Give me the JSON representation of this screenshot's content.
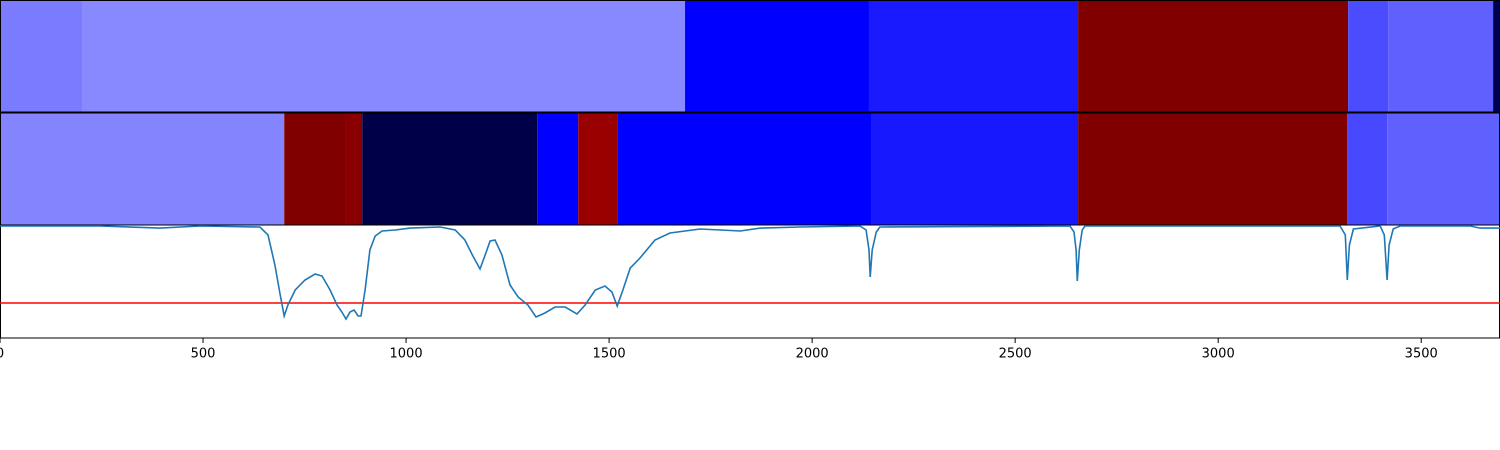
{
  "chart_data": {
    "type": "line",
    "xlim": [
      0,
      3694
    ],
    "xticks": [
      0,
      500,
      1000,
      1500,
      2000,
      2500,
      3000,
      3500
    ],
    "ylim": [
      0,
      1
    ],
    "tracks": [
      [
        {
          "start": 0,
          "end": 204,
          "color": "#7b7bff"
        },
        {
          "start": 204,
          "end": 1687,
          "color": "#8888ff"
        },
        {
          "start": 1687,
          "end": 2140,
          "color": "#0000ff"
        },
        {
          "start": 2140,
          "end": 2655,
          "color": "#1a1aff"
        },
        {
          "start": 2655,
          "end": 3320,
          "color": "#800000"
        },
        {
          "start": 3320,
          "end": 3419,
          "color": "#4c4cff"
        },
        {
          "start": 3419,
          "end": 3677,
          "color": "#6060ff"
        },
        {
          "start": 3677,
          "end": 3694,
          "color": "#000050"
        }
      ],
      [
        {
          "start": 0,
          "end": 700,
          "color": "#8484ff"
        },
        {
          "start": 700,
          "end": 852,
          "color": "#800000"
        },
        {
          "start": 852,
          "end": 892,
          "color": "#8a0000"
        },
        {
          "start": 892,
          "end": 1323,
          "color": "#000048"
        },
        {
          "start": 1323,
          "end": 1424,
          "color": "#0000ff"
        },
        {
          "start": 1424,
          "end": 1520,
          "color": "#990000"
        },
        {
          "start": 1520,
          "end": 2145,
          "color": "#0000ff"
        },
        {
          "start": 2145,
          "end": 2655,
          "color": "#1818ff"
        },
        {
          "start": 2655,
          "end": 3318,
          "color": "#800000"
        },
        {
          "start": 3318,
          "end": 3416,
          "color": "#4848ff"
        },
        {
          "start": 3416,
          "end": 3694,
          "color": "#6060ff"
        }
      ]
    ],
    "threshold": {
      "value": 0.31,
      "color": "#ff0000"
    },
    "x": [
      0,
      246,
      394,
      493,
      640,
      660,
      677,
      690,
      700,
      709,
      727,
      751,
      776,
      793,
      813,
      830,
      842,
      852,
      862,
      872,
      882,
      889,
      899,
      911,
      924,
      941,
      973,
      1010,
      1084,
      1121,
      1145,
      1163,
      1182,
      1195,
      1207,
      1219,
      1236,
      1256,
      1276,
      1300,
      1320,
      1342,
      1367,
      1392,
      1421,
      1441,
      1466,
      1490,
      1507,
      1520,
      1534,
      1552,
      1576,
      1613,
      1650,
      1724,
      1823,
      1872,
      1970,
      2118,
      2133,
      2140,
      2143,
      2148,
      2158,
      2167,
      2635,
      2645,
      2650,
      2653,
      2658,
      2665,
      2672,
      3300,
      3313,
      3318,
      3323,
      3333,
      3399,
      3409,
      3416,
      3421,
      3431,
      3448,
      3621,
      3645,
      3694
    ],
    "series": [
      {
        "color": "#1f77b4",
        "values": [
          0.991,
          0.991,
          0.973,
          0.991,
          0.982,
          0.912,
          0.646,
          0.381,
          0.195,
          0.292,
          0.425,
          0.513,
          0.566,
          0.549,
          0.425,
          0.292,
          0.23,
          0.168,
          0.23,
          0.248,
          0.195,
          0.195,
          0.425,
          0.779,
          0.903,
          0.947,
          0.956,
          0.973,
          0.982,
          0.956,
          0.867,
          0.735,
          0.611,
          0.735,
          0.858,
          0.867,
          0.735,
          0.469,
          0.363,
          0.292,
          0.186,
          0.221,
          0.274,
          0.274,
          0.212,
          0.292,
          0.425,
          0.46,
          0.407,
          0.283,
          0.425,
          0.619,
          0.708,
          0.867,
          0.929,
          0.965,
          0.947,
          0.973,
          0.982,
          0.991,
          0.956,
          0.779,
          0.54,
          0.779,
          0.938,
          0.982,
          0.991,
          0.938,
          0.779,
          0.504,
          0.779,
          0.956,
          0.991,
          0.991,
          0.912,
          0.513,
          0.823,
          0.965,
          0.991,
          0.912,
          0.513,
          0.823,
          0.965,
          0.991,
          0.991,
          0.973,
          0.973
        ]
      }
    ]
  }
}
